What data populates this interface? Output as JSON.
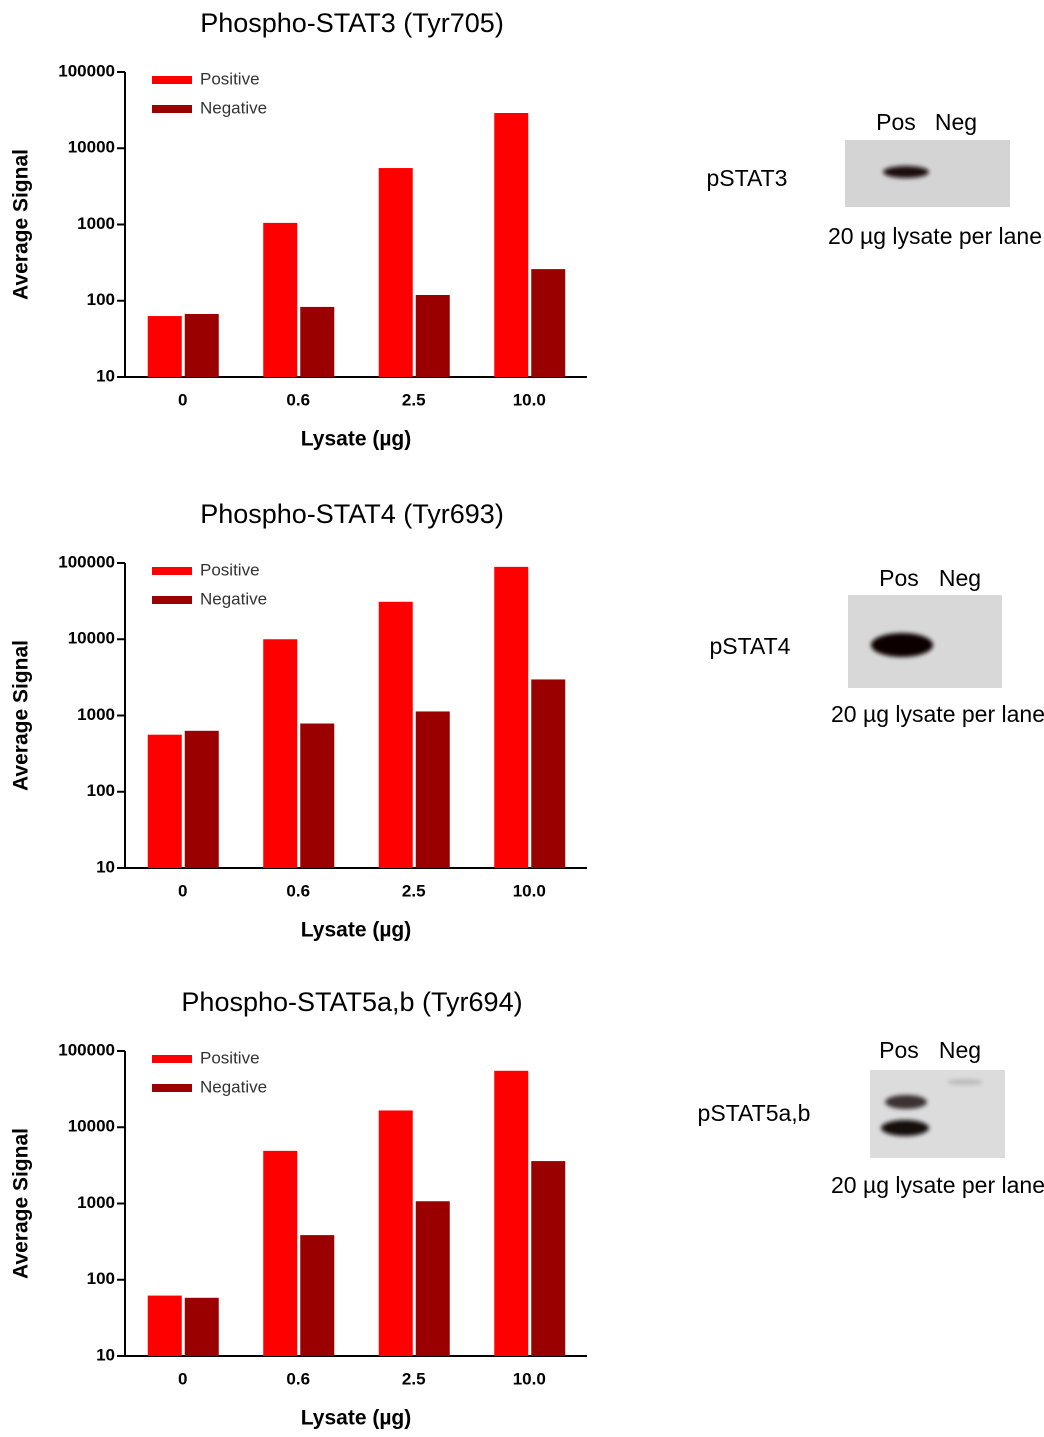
{
  "chart_data": [
    {
      "type": "bar",
      "title": "Phospho-STAT3 (Tyr705)",
      "x_label": "Lysate (µg)",
      "y_label": "Average Signal",
      "categories": [
        "0",
        "0.6",
        "2.5",
        "10.0"
      ],
      "series": [
        {
          "name": "Positive",
          "color": "#ff0000",
          "values": [
            63,
            1050,
            5500,
            29000
          ]
        },
        {
          "name": "Negative",
          "color": "#9b0000",
          "values": [
            67,
            83,
            119,
            260
          ]
        }
      ],
      "ylim": [
        10,
        100000
      ],
      "yticks": [
        10,
        100,
        1000,
        10000,
        100000
      ],
      "log_scale": true,
      "legend": "top-left"
    },
    {
      "type": "bar",
      "title": "Phospho-STAT4 (Tyr693)",
      "x_label": "Lysate (µg)",
      "y_label": "Average Signal",
      "categories": [
        "0",
        "0.6",
        "2.5",
        "10.0"
      ],
      "series": [
        {
          "name": "Positive",
          "color": "#ff0000",
          "values": [
            560,
            10000,
            31000,
            89000
          ]
        },
        {
          "name": "Negative",
          "color": "#9b0000",
          "values": [
            630,
            785,
            1130,
            2970
          ]
        }
      ],
      "ylim": [
        10,
        100000
      ],
      "yticks": [
        10,
        100,
        1000,
        10000,
        100000
      ],
      "log_scale": true,
      "legend": "top-left"
    },
    {
      "type": "bar",
      "title": "Phospho-STAT5a,b (Tyr694)",
      "x_label": "Lysate (µg)",
      "y_label": "Average Signal",
      "categories": [
        "0",
        "0.6",
        "2.5",
        "10.0"
      ],
      "series": [
        {
          "name": "Positive",
          "color": "#ff0000",
          "values": [
            62,
            4900,
            16600,
            55000
          ]
        },
        {
          "name": "Negative",
          "color": "#9b0000",
          "values": [
            58,
            385,
            1070,
            3600
          ]
        }
      ],
      "ylim": [
        10,
        100000
      ],
      "yticks": [
        10,
        100,
        1000,
        10000,
        100000
      ],
      "log_scale": true,
      "legend": "top-left"
    }
  ],
  "blots": [
    {
      "label": "pSTAT3",
      "lanes": [
        "Pos",
        "Neg"
      ],
      "caption": "20 µg lysate per lane"
    },
    {
      "label": "pSTAT4",
      "lanes": [
        "Pos",
        "Neg"
      ],
      "caption": "20 µg lysate per lane"
    },
    {
      "label": "pSTAT5a,b",
      "lanes": [
        "Pos",
        "Neg"
      ],
      "caption": "20 µg lysate per lane"
    }
  ]
}
